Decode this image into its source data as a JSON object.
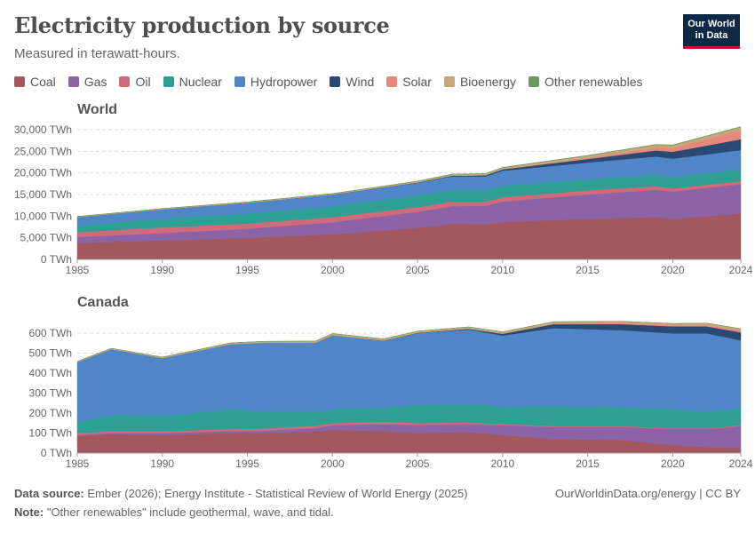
{
  "title": "Electricity production by source",
  "subtitle": "Measured in terawatt-hours.",
  "logo": {
    "line1": "Our World",
    "line2": "in Data"
  },
  "legend": [
    {
      "name": "Coal",
      "color": "#a2585c"
    },
    {
      "name": "Gas",
      "color": "#8c63a7"
    },
    {
      "name": "Oil",
      "color": "#cf6b7a"
    },
    {
      "name": "Nuclear",
      "color": "#2e9f93"
    },
    {
      "name": "Hydropower",
      "color": "#4e86c8"
    },
    {
      "name": "Wind",
      "color": "#2a4a74"
    },
    {
      "name": "Solar",
      "color": "#e8887c"
    },
    {
      "name": "Bioenergy",
      "color": "#c7a77a"
    },
    {
      "name": "Other renewables",
      "color": "#6a9a5f"
    }
  ],
  "footer": {
    "source_label": "Data source:",
    "source_text": " Ember (2026); Energy Institute - Statistical Review of World Energy (2025)",
    "note_label": "Note:",
    "note_text": " \"Other renewables\" include geothermal, wave, and tidal.",
    "credit": "OurWorldinData.org/energy | CC BY"
  },
  "chart_data": [
    {
      "type": "area",
      "stacked": true,
      "title": "World",
      "unit": "TWh",
      "x": [
        1985,
        1990,
        1995,
        2000,
        2005,
        2007,
        2009,
        2010,
        2015,
        2019,
        2020,
        2024
      ],
      "ylim": [
        0,
        30000
      ],
      "yticks": [
        0,
        5000,
        10000,
        15000,
        20000,
        25000,
        30000
      ],
      "ytick_labels": [
        "0 TWh",
        "5,000 TWh",
        "10,000 TWh",
        "15,000 TWh",
        "20,000 TWh",
        "25,000 TWh",
        "30,000 TWh"
      ],
      "xticks": [
        1985,
        1990,
        1995,
        2000,
        2005,
        2010,
        2015,
        2020,
        2024
      ],
      "series": [
        {
          "name": "Coal",
          "values": [
            3800,
            4400,
            5000,
            5800,
            7300,
            8200,
            8100,
            8600,
            9400,
            9800,
            9400,
            10600
          ]
        },
        {
          "name": "Gas",
          "values": [
            1400,
            1700,
            2100,
            2800,
            3700,
            4100,
            4300,
            4800,
            5600,
            6300,
            6300,
            6800
          ]
        },
        {
          "name": "Oil",
          "values": [
            1100,
            1300,
            1200,
            1200,
            1100,
            1100,
            1000,
            1000,
            1000,
            800,
            700,
            700
          ]
        },
        {
          "name": "Nuclear",
          "values": [
            1500,
            2000,
            2300,
            2500,
            2700,
            2700,
            2600,
            2700,
            2500,
            2700,
            2600,
            2800
          ]
        },
        {
          "name": "Hydropower",
          "values": [
            2000,
            2200,
            2500,
            2700,
            2900,
            3100,
            3200,
            3400,
            3900,
            4200,
            4300,
            4400
          ]
        },
        {
          "name": "Wind",
          "values": [
            0,
            4,
            8,
            30,
            100,
            170,
            270,
            340,
            830,
            1400,
            1600,
            2500
          ]
        },
        {
          "name": "Solar",
          "values": [
            0,
            0,
            0,
            1,
            4,
            8,
            20,
            30,
            250,
            700,
            850,
            2100
          ]
        },
        {
          "name": "Bioenergy",
          "values": [
            100,
            130,
            150,
            150,
            250,
            280,
            300,
            350,
            500,
            600,
            650,
            700
          ]
        },
        {
          "name": "Other renewables",
          "values": [
            30,
            40,
            50,
            60,
            60,
            70,
            70,
            70,
            80,
            90,
            90,
            100
          ]
        }
      ]
    },
    {
      "type": "area",
      "stacked": true,
      "title": "Canada",
      "unit": "TWh",
      "x": [
        1985,
        1987,
        1990,
        1994,
        1996,
        1999,
        2000,
        2003,
        2005,
        2008,
        2010,
        2013,
        2017,
        2020,
        2022,
        2024
      ],
      "ylim": [
        0,
        650
      ],
      "yticks": [
        0,
        100,
        200,
        300,
        400,
        500,
        600
      ],
      "ytick_labels": [
        "0 TWh",
        "100 TWh",
        "200 TWh",
        "300 TWh",
        "400 TWh",
        "500 TWh",
        "600 TWh"
      ],
      "xticks": [
        1985,
        1990,
        1995,
        2000,
        2005,
        2010,
        2015,
        2020,
        2024
      ],
      "series": [
        {
          "name": "Coal",
          "values": [
            85,
            95,
            90,
            100,
            100,
            110,
            115,
            110,
            100,
            105,
            90,
            70,
            65,
            40,
            30,
            25
          ]
        },
        {
          "name": "Gas",
          "values": [
            5,
            5,
            10,
            10,
            12,
            15,
            25,
            35,
            40,
            40,
            50,
            60,
            65,
            80,
            90,
            110
          ]
        },
        {
          "name": "Oil",
          "values": [
            10,
            10,
            10,
            10,
            10,
            12,
            10,
            12,
            10,
            8,
            5,
            5,
            5,
            4,
            4,
            4
          ]
        },
        {
          "name": "Nuclear",
          "values": [
            55,
            80,
            75,
            100,
            85,
            70,
            70,
            70,
            90,
            90,
            88,
            100,
            95,
            95,
            85,
            85
          ]
        },
        {
          "name": "Hydropower",
          "values": [
            300,
            330,
            290,
            325,
            345,
            345,
            370,
            335,
            360,
            375,
            355,
            390,
            385,
            380,
            390,
            340
          ]
        },
        {
          "name": "Wind",
          "values": [
            0,
            0,
            0,
            0,
            0,
            0,
            0,
            1,
            2,
            4,
            9,
            20,
            30,
            35,
            35,
            40
          ]
        },
        {
          "name": "Solar",
          "values": [
            0,
            0,
            0,
            0,
            0,
            0,
            0,
            0,
            0,
            0,
            0.5,
            2,
            4,
            5,
            6,
            8
          ]
        },
        {
          "name": "Bioenergy",
          "values": [
            4,
            4,
            5,
            6,
            7,
            8,
            8,
            8,
            8,
            9,
            9,
            10,
            10,
            9,
            10,
            10
          ]
        },
        {
          "name": "Other renewables",
          "values": [
            0.03,
            0.03,
            0.03,
            0.03,
            0.03,
            0.03,
            0.03,
            0.03,
            0.03,
            0.03,
            0.03,
            0.03,
            0.02,
            0.02,
            0.02,
            0.02
          ]
        }
      ]
    }
  ]
}
